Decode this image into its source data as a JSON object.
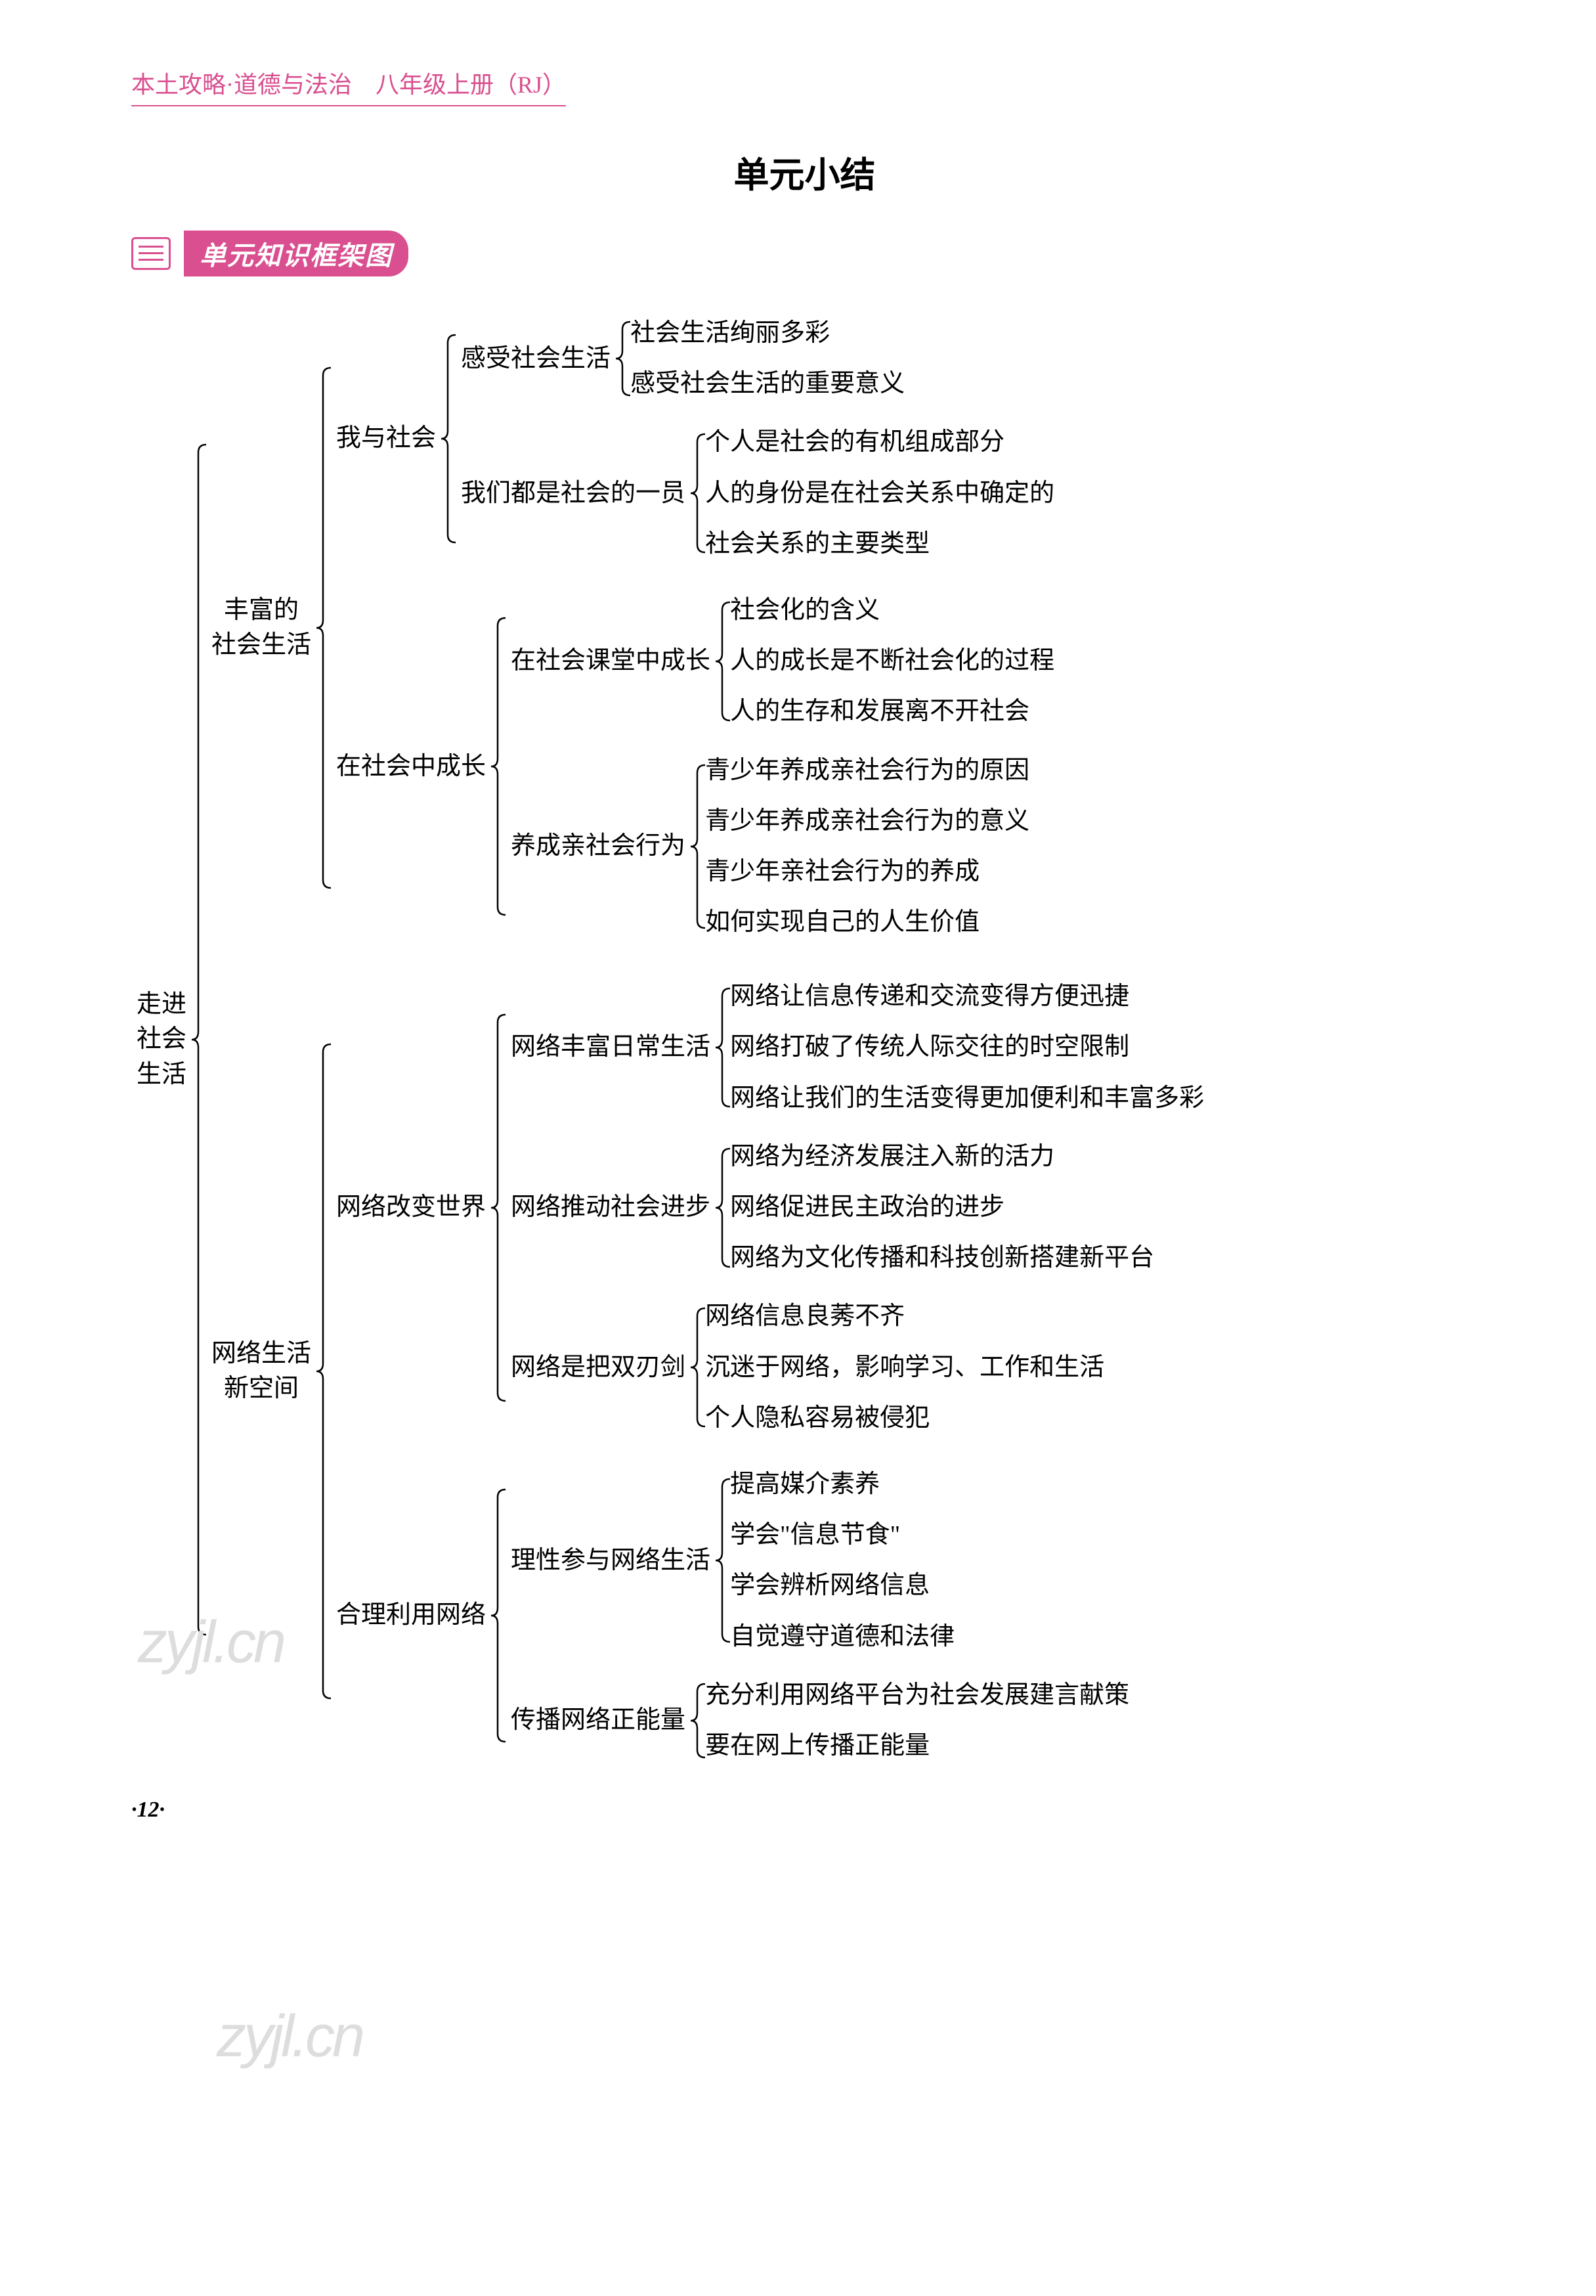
{
  "header": "本土攻略·道德与法治　八年级上册（RJ）",
  "title": "单元小结",
  "section_label": "单元知识框架图",
  "page_number": "·12·",
  "watermark": "zyjl.cn",
  "colors": {
    "accent": "#d94f8f",
    "text": "#000000",
    "background": "#ffffff",
    "watermark": "#dddddd"
  },
  "typography": {
    "body_fontsize": 38,
    "title_fontsize": 54,
    "header_fontsize": 36,
    "section_fontsize": 40
  },
  "tree": {
    "type": "tree",
    "label": "走进\n社会\n生活",
    "children": [
      {
        "label": "丰富的\n社会生活",
        "children": [
          {
            "label": "我与社会",
            "children": [
              {
                "label": "感受社会生活",
                "children": [
                  {
                    "label": "社会生活绚丽多彩"
                  },
                  {
                    "label": "感受社会生活的重要意义"
                  }
                ]
              },
              {
                "label": "我们都是社会的一员",
                "children": [
                  {
                    "label": "个人是社会的有机组成部分"
                  },
                  {
                    "label": "人的身份是在社会关系中确定的"
                  },
                  {
                    "label": "社会关系的主要类型"
                  }
                ]
              }
            ]
          },
          {
            "label": "在社会中成长",
            "children": [
              {
                "label": "在社会课堂中成长",
                "children": [
                  {
                    "label": "社会化的含义"
                  },
                  {
                    "label": "人的成长是不断社会化的过程"
                  },
                  {
                    "label": "人的生存和发展离不开社会"
                  }
                ]
              },
              {
                "label": "养成亲社会行为",
                "children": [
                  {
                    "label": "青少年养成亲社会行为的原因"
                  },
                  {
                    "label": "青少年养成亲社会行为的意义"
                  },
                  {
                    "label": "青少年亲社会行为的养成"
                  },
                  {
                    "label": "如何实现自己的人生价值"
                  }
                ]
              }
            ]
          }
        ]
      },
      {
        "label": "网络生活\n新空间",
        "children": [
          {
            "label": "网络改变世界",
            "children": [
              {
                "label": "网络丰富日常生活",
                "children": [
                  {
                    "label": "网络让信息传递和交流变得方便迅捷"
                  },
                  {
                    "label": "网络打破了传统人际交往的时空限制"
                  },
                  {
                    "label": "网络让我们的生活变得更加便利和丰富多彩"
                  }
                ]
              },
              {
                "label": "网络推动社会进步",
                "children": [
                  {
                    "label": "网络为经济发展注入新的活力"
                  },
                  {
                    "label": "网络促进民主政治的进步"
                  },
                  {
                    "label": "网络为文化传播和科技创新搭建新平台"
                  }
                ]
              },
              {
                "label": "网络是把双刃剑",
                "children": [
                  {
                    "label": "网络信息良莠不齐"
                  },
                  {
                    "label": "沉迷于网络，影响学习、工作和生活"
                  },
                  {
                    "label": "个人隐私容易被侵犯"
                  }
                ]
              }
            ]
          },
          {
            "label": "合理利用网络",
            "children": [
              {
                "label": "理性参与网络生活",
                "children": [
                  {
                    "label": "提高媒介素养"
                  },
                  {
                    "label": "学会\"信息节食\""
                  },
                  {
                    "label": "学会辨析网络信息"
                  },
                  {
                    "label": "自觉遵守道德和法律"
                  }
                ]
              },
              {
                "label": "传播网络正能量",
                "children": [
                  {
                    "label": "充分利用网络平台为社会发展建言献策"
                  },
                  {
                    "label": "要在网上传播正能量"
                  }
                ]
              }
            ]
          }
        ]
      }
    ]
  }
}
